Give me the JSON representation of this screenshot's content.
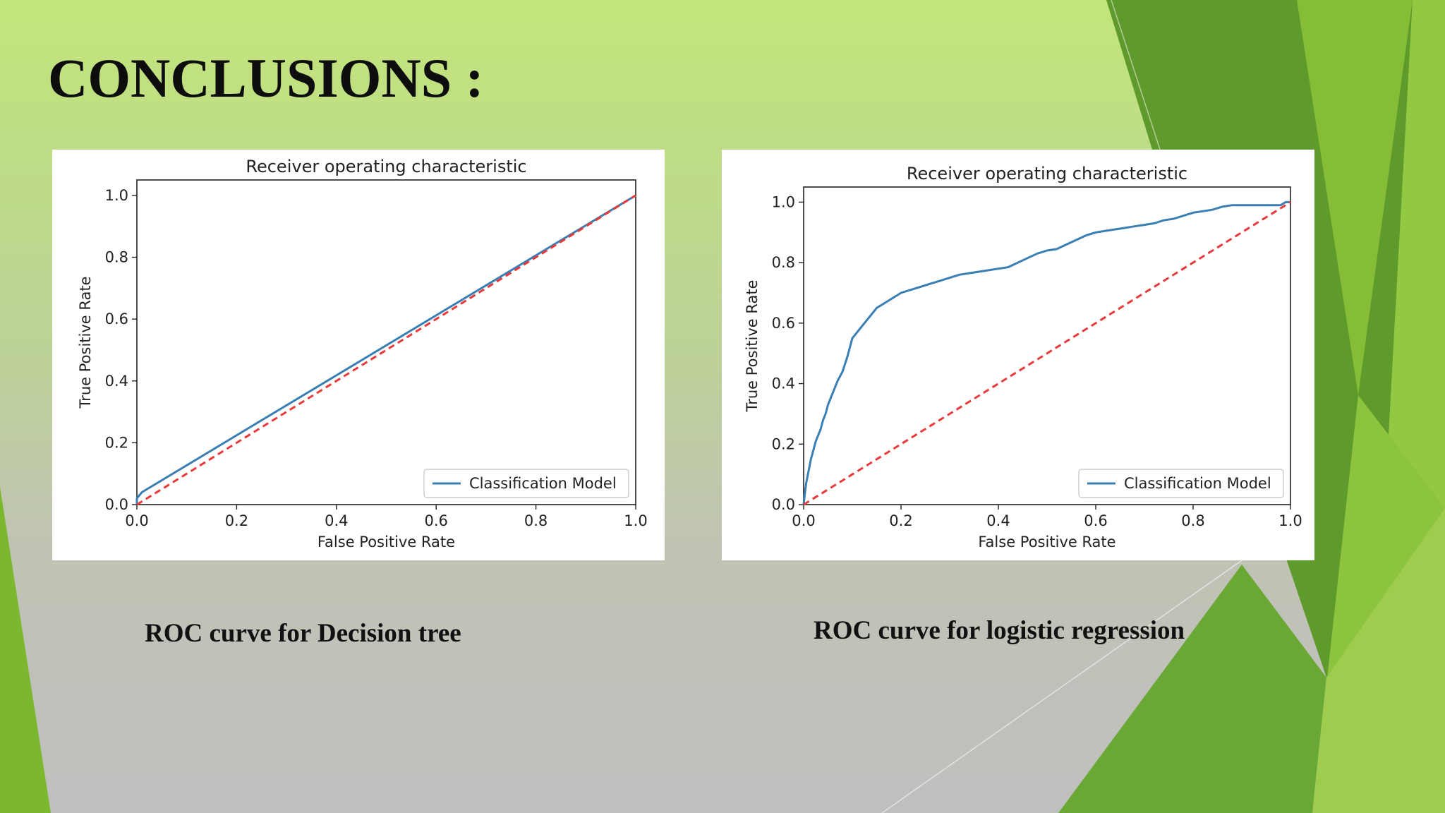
{
  "slide": {
    "title": "CONCLUSIONS :",
    "captions": [
      "ROC curve for Decision tree",
      "ROC curve for logistic regression"
    ]
  },
  "colors": {
    "curve": "#3a7fb3",
    "diagonal": "#e8393b",
    "accent_green": "#7cb82f"
  },
  "chart_data": [
    {
      "type": "line",
      "title": "Receiver operating characteristic",
      "xlabel": "False Positive Rate",
      "ylabel": "True Positive Rate",
      "xlim": [
        0,
        1
      ],
      "ylim": [
        0,
        1.05
      ],
      "xticks": [
        "0.0",
        "0.2",
        "0.4",
        "0.6",
        "0.8",
        "1.0"
      ],
      "yticks": [
        "0.0",
        "0.2",
        "0.4",
        "0.6",
        "0.8",
        "1.0"
      ],
      "legend_position": "lower-right",
      "grid": false,
      "series": [
        {
          "name": "Classification Model",
          "style": "solid",
          "x": [
            0.0,
            0.0,
            0.01,
            1.0
          ],
          "y": [
            0.0,
            0.02,
            0.04,
            1.0
          ]
        },
        {
          "style": "dashed",
          "x": [
            0,
            1
          ],
          "y": [
            0,
            1
          ]
        }
      ]
    },
    {
      "type": "line",
      "title": "Receiver operating characteristic",
      "xlabel": "False Positive Rate",
      "ylabel": "True Positive Rate",
      "xlim": [
        0,
        1
      ],
      "ylim": [
        0,
        1.05
      ],
      "xticks": [
        "0.0",
        "0.2",
        "0.4",
        "0.6",
        "0.8",
        "1.0"
      ],
      "yticks": [
        "0.0",
        "0.2",
        "0.4",
        "0.6",
        "0.8",
        "1.0"
      ],
      "legend_position": "lower-right",
      "grid": false,
      "series": [
        {
          "name": "Classification Model",
          "style": "solid",
          "x": [
            0.0,
            0.002,
            0.005,
            0.01,
            0.015,
            0.02,
            0.025,
            0.03,
            0.035,
            0.04,
            0.045,
            0.05,
            0.06,
            0.07,
            0.08,
            0.09,
            0.1,
            0.11,
            0.12,
            0.13,
            0.14,
            0.15,
            0.16,
            0.17,
            0.18,
            0.2,
            0.22,
            0.24,
            0.26,
            0.28,
            0.3,
            0.32,
            0.34,
            0.36,
            0.38,
            0.4,
            0.42,
            0.44,
            0.46,
            0.48,
            0.5,
            0.52,
            0.54,
            0.56,
            0.58,
            0.6,
            0.62,
            0.64,
            0.66,
            0.68,
            0.7,
            0.72,
            0.74,
            0.76,
            0.78,
            0.8,
            0.82,
            0.84,
            0.86,
            0.88,
            0.9,
            0.92,
            0.94,
            0.96,
            0.98,
            0.99,
            1.0
          ],
          "y": [
            0.0,
            0.03,
            0.07,
            0.11,
            0.15,
            0.18,
            0.21,
            0.23,
            0.25,
            0.28,
            0.3,
            0.33,
            0.37,
            0.41,
            0.44,
            0.49,
            0.55,
            0.57,
            0.59,
            0.61,
            0.63,
            0.65,
            0.66,
            0.67,
            0.68,
            0.7,
            0.71,
            0.72,
            0.73,
            0.74,
            0.75,
            0.76,
            0.765,
            0.77,
            0.775,
            0.78,
            0.785,
            0.8,
            0.815,
            0.83,
            0.84,
            0.845,
            0.86,
            0.875,
            0.89,
            0.9,
            0.905,
            0.91,
            0.915,
            0.92,
            0.925,
            0.93,
            0.94,
            0.945,
            0.955,
            0.965,
            0.97,
            0.975,
            0.985,
            0.99,
            0.99,
            0.99,
            0.99,
            0.99,
            0.99,
            1.0,
            1.0
          ]
        },
        {
          "style": "dashed",
          "x": [
            0,
            1
          ],
          "y": [
            0,
            1
          ]
        }
      ]
    }
  ]
}
